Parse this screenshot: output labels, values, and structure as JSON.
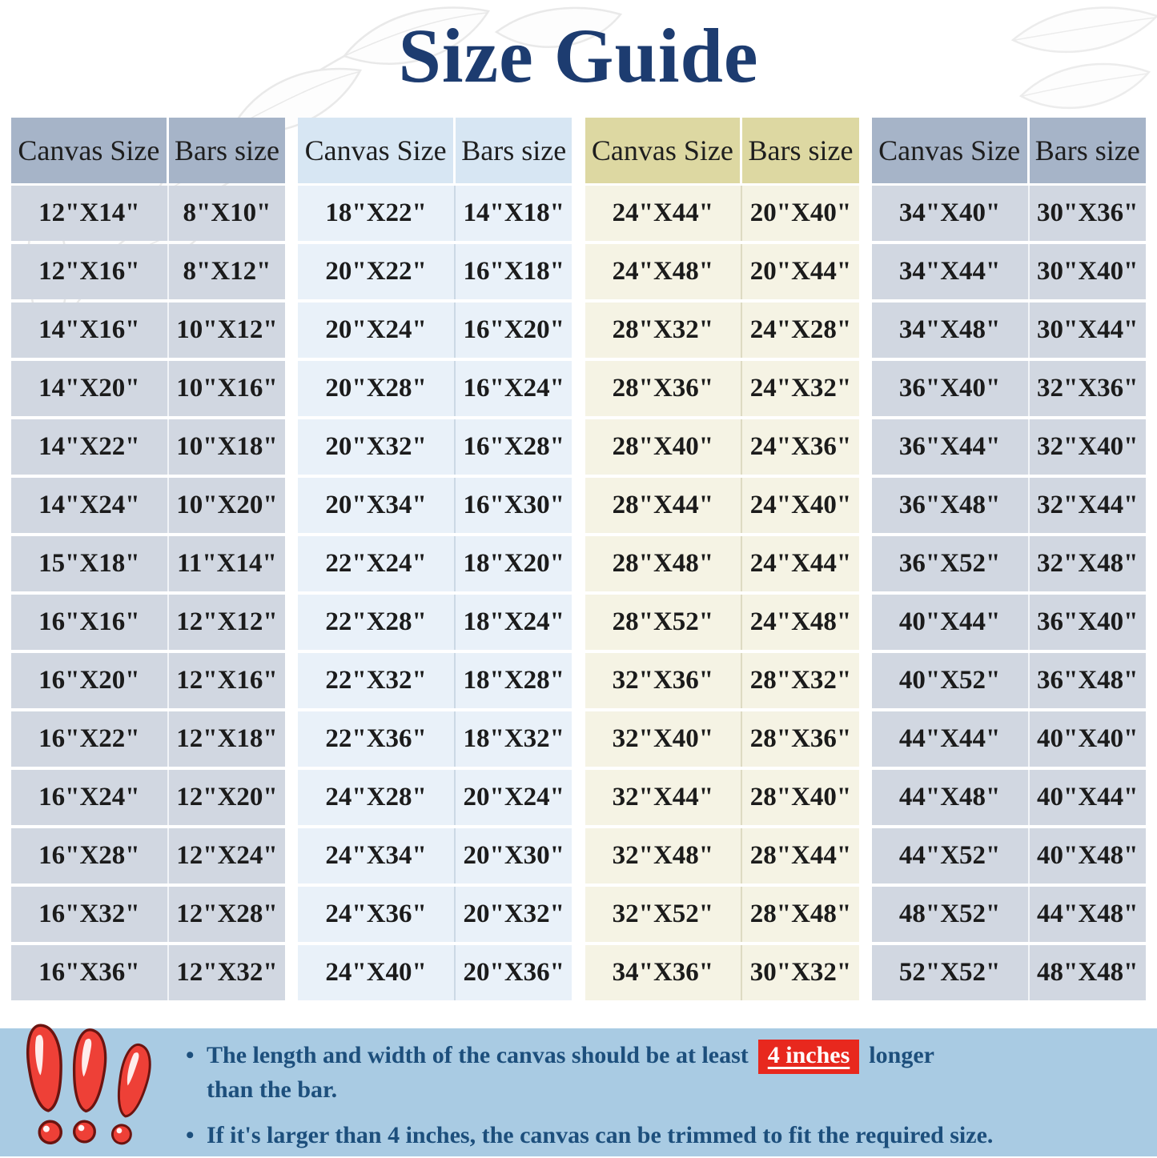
{
  "title": "Size Guide",
  "table_groups": [
    {
      "header": {
        "canvas": "Canvas Size",
        "bars": "Bars size"
      },
      "colors": {
        "header_bg": "#a6b4c8",
        "body_bg": "#d1d7e1",
        "divider": "#f2f4f7"
      },
      "rows": [
        [
          "12\"X14\"",
          "8\"X10\""
        ],
        [
          "12\"X16\"",
          "8\"X12\""
        ],
        [
          "14\"X16\"",
          "10\"X12\""
        ],
        [
          "14\"X20\"",
          "10\"X16\""
        ],
        [
          "14\"X22\"",
          "10\"X18\""
        ],
        [
          "14\"X24\"",
          "10\"X20\""
        ],
        [
          "15\"X18\"",
          "11\"X14\""
        ],
        [
          "16\"X16\"",
          "12\"X12\""
        ],
        [
          "16\"X20\"",
          "12\"X16\""
        ],
        [
          "16\"X22\"",
          "12\"X18\""
        ],
        [
          "16\"X24\"",
          "12\"X20\""
        ],
        [
          "16\"X28\"",
          "12\"X24\""
        ],
        [
          "16\"X32\"",
          "12\"X28\""
        ],
        [
          "16\"X36\"",
          "12\"X32\""
        ]
      ]
    },
    {
      "header": {
        "canvas": "Canvas Size",
        "bars": "Bars size"
      },
      "colors": {
        "header_bg": "#d7e6f3",
        "body_bg": "#e9f1f9",
        "divider": "#ccd9e5"
      },
      "rows": [
        [
          "18\"X22\"",
          "14\"X18\""
        ],
        [
          "20\"X22\"",
          "16\"X18\""
        ],
        [
          "20\"X24\"",
          "16\"X20\""
        ],
        [
          "20\"X28\"",
          "16\"X24\""
        ],
        [
          "20\"X32\"",
          "16\"X28\""
        ],
        [
          "20\"X34\"",
          "16\"X30\""
        ],
        [
          "22\"X24\"",
          "18\"X20\""
        ],
        [
          "22\"X28\"",
          "18\"X24\""
        ],
        [
          "22\"X32\"",
          "18\"X28\""
        ],
        [
          "22\"X36\"",
          "18\"X32\""
        ],
        [
          "24\"X28\"",
          "20\"X24\""
        ],
        [
          "24\"X34\"",
          "20\"X30\""
        ],
        [
          "24\"X36\"",
          "20\"X32\""
        ],
        [
          "24\"X40\"",
          "20\"X36\""
        ]
      ]
    },
    {
      "header": {
        "canvas": "Canvas Size",
        "bars": "Bars size"
      },
      "colors": {
        "header_bg": "#ddd8a2",
        "body_bg": "#f5f3e4",
        "divider": "#dddac2"
      },
      "rows": [
        [
          "24\"X44\"",
          "20\"X40\""
        ],
        [
          "24\"X48\"",
          "20\"X44\""
        ],
        [
          "28\"X32\"",
          "24\"X28\""
        ],
        [
          "28\"X36\"",
          "24\"X32\""
        ],
        [
          "28\"X40\"",
          "24\"X36\""
        ],
        [
          "28\"X44\"",
          "24\"X40\""
        ],
        [
          "28\"X48\"",
          "24\"X44\""
        ],
        [
          "28\"X52\"",
          "24\"X48\""
        ],
        [
          "32\"X36\"",
          "28\"X32\""
        ],
        [
          "32\"X40\"",
          "28\"X36\""
        ],
        [
          "32\"X44\"",
          "28\"X40\""
        ],
        [
          "32\"X48\"",
          "28\"X44\""
        ],
        [
          "32\"X52\"",
          "28\"X48\""
        ],
        [
          "34\"X36\"",
          "30\"X32\""
        ]
      ]
    },
    {
      "header": {
        "canvas": "Canvas Size",
        "bars": "Bars size"
      },
      "colors": {
        "header_bg": "#a6b4c8",
        "body_bg": "#d1d7e1",
        "divider": "#f2f4f7"
      },
      "rows": [
        [
          "34\"X40\"",
          "30\"X36\""
        ],
        [
          "34\"X44\"",
          "30\"X40\""
        ],
        [
          "34\"X48\"",
          "30\"X44\""
        ],
        [
          "36\"X40\"",
          "32\"X36\""
        ],
        [
          "36\"X44\"",
          "32\"X40\""
        ],
        [
          "36\"X48\"",
          "32\"X44\""
        ],
        [
          "36\"X52\"",
          "32\"X48\""
        ],
        [
          "40\"X44\"",
          "36\"X40\""
        ],
        [
          "40\"X52\"",
          "36\"X48\""
        ],
        [
          "44\"X44\"",
          "40\"X40\""
        ],
        [
          "44\"X48\"",
          "40\"X44\""
        ],
        [
          "44\"X52\"",
          "40\"X48\""
        ],
        [
          "48\"X52\"",
          "44\"X48\""
        ],
        [
          "52\"X52\"",
          "48\"X48\""
        ]
      ]
    }
  ],
  "notes": {
    "note1_line1_pre": "The length and width of the canvas should be at least",
    "note1_highlight": "4 inches",
    "note1_line1_post": "longer",
    "note1_line2": "than the bar.",
    "note2": "If it's larger than 4 inches, the canvas can be trimmed to fit the required size.",
    "bullet_char": "•"
  },
  "colors": {
    "title": "#1d3c70",
    "note_text": "#1d4f7c",
    "note_band_bg": "#a9cbe3",
    "highlight_bg": "#e8281e",
    "highlight_text": "#ffffff",
    "exclamation_fill": "#ee4037",
    "exclamation_outline": "#6b1410"
  }
}
